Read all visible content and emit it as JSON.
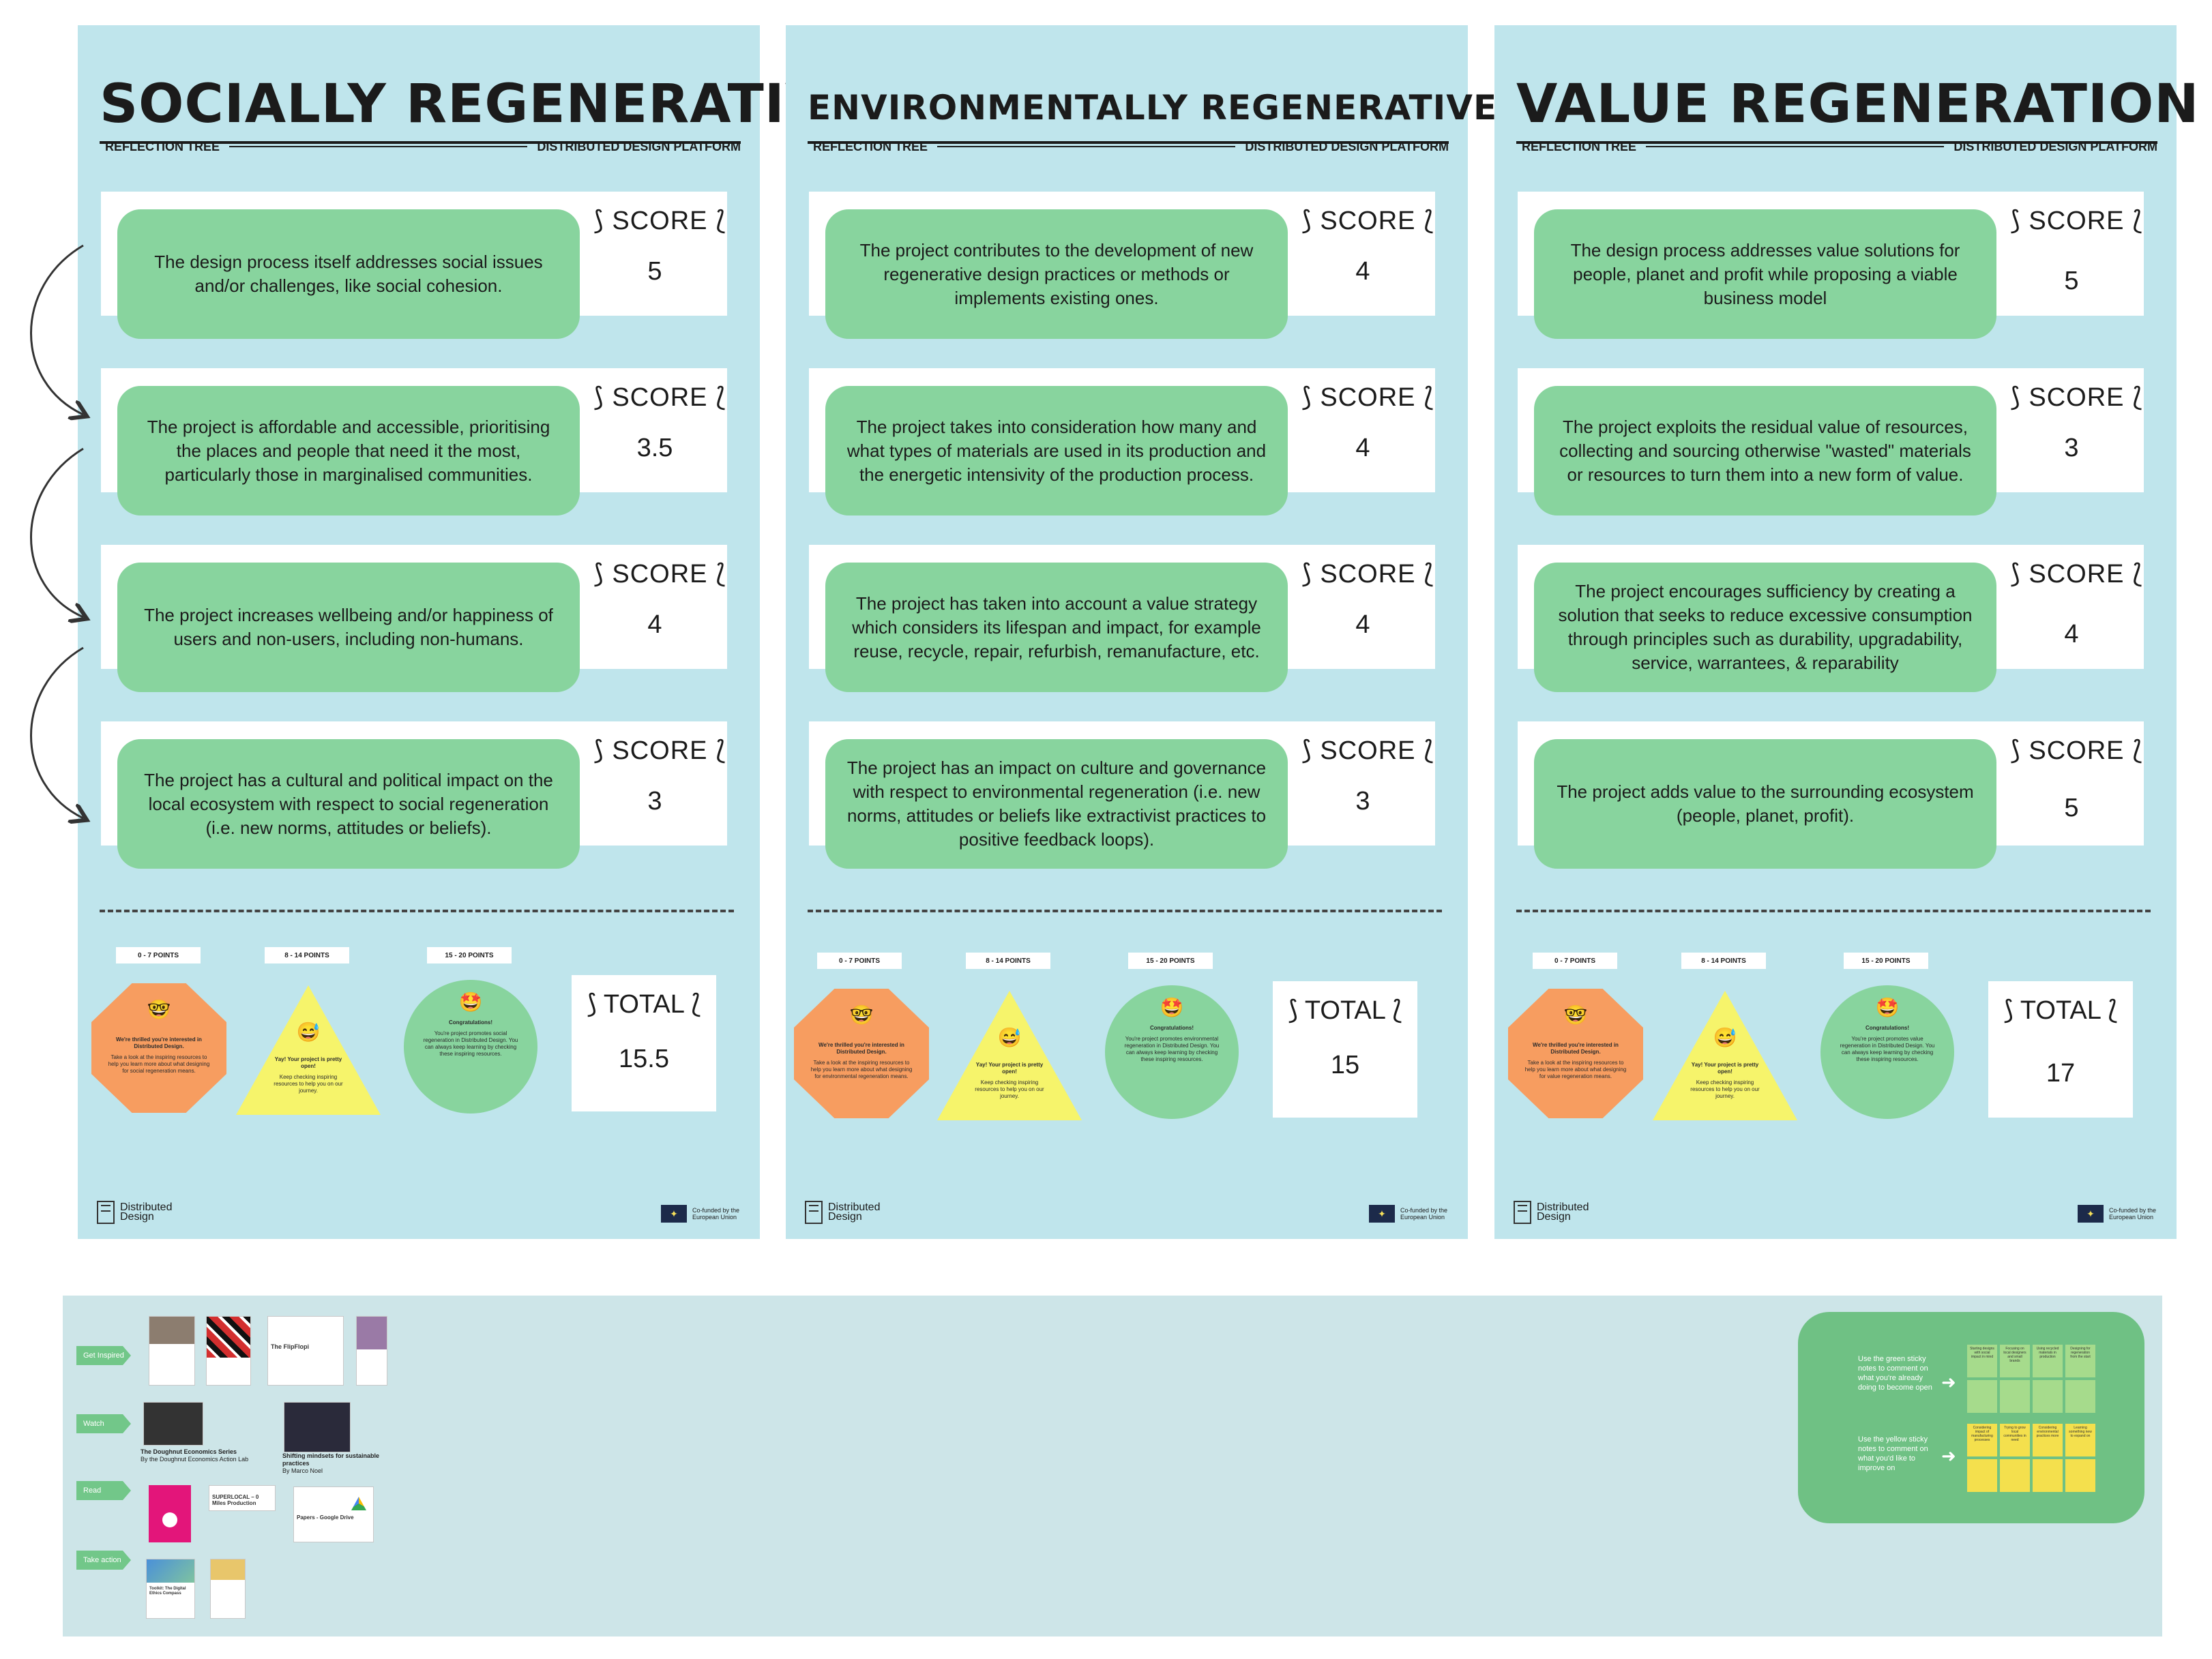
{
  "boards": [
    {
      "title": "SOCIALLY REGENERATIVE",
      "subtitle_left": "REFLECTION TREE",
      "subtitle_right": "DISTRIBUTED DESIGN PLATFORM",
      "score_label": "⟆ SCORE ⟅",
      "questions": [
        {
          "text": "The design process itself addresses social issues and/or challenges, like social cohesion.",
          "score": "5"
        },
        {
          "text": "The project is affordable and accessible, prioritising the places and people that need it the most, particularly those in marginalised communities.",
          "score": "3.5"
        },
        {
          "text": "The project increases wellbeing and/or happiness of users and non-users, including non-humans.",
          "score": "4"
        },
        {
          "text": "The project has a cultural and political impact on the local ecosystem with respect to social regeneration (i.e. new norms, attitudes or beliefs).",
          "score": "3"
        }
      ],
      "tiers": [
        {
          "range": "0 - 7 POINTS",
          "emoji": "🤓",
          "headline": "We're thrilled you're interested in Distributed Design.",
          "body": "Take a look at the inspiring resources to help you learn more about what designing for social regeneration means."
        },
        {
          "range": "8 - 14 POINTS",
          "emoji": "😅",
          "headline": "Yay! Your project is pretty open!",
          "body": "Keep checking inspiring resources to help you on our journey."
        },
        {
          "range": "15 - 20 POINTS",
          "emoji": "🤩",
          "headline": "Congratulations!",
          "body": "You're project promotes social regeneration in Distributed Design. You can always keep learning by checking these inspiring resources."
        }
      ],
      "total_label": "⟆ TOTAL ⟅",
      "total": "15.5",
      "logo_text_1": "Distributed",
      "logo_text_2": "Design",
      "eu_text_1": "Co-funded by the",
      "eu_text_2": "European Union"
    },
    {
      "title": "ENVIRONMENTALLY REGENERATIVE",
      "subtitle_left": "REFLECTION TREE",
      "subtitle_right": "DISTRIBUTED DESIGN PLATFORM",
      "score_label": "⟆ SCORE ⟅",
      "questions": [
        {
          "text": "The project contributes to the development of new regenerative design practices or methods or implements existing ones.",
          "score": "4"
        },
        {
          "text": "The project takes into consideration how many and what types of materials are used in its production and the energetic intensivity of the production process.",
          "score": "4"
        },
        {
          "text": "The project has taken into account a value strategy which considers its lifespan and impact, for example reuse, recycle, repair, refurbish, remanufacture, etc.",
          "score": "4"
        },
        {
          "text": "The project has an impact on culture and governance with respect to environmental regeneration (i.e. new norms, attitudes or beliefs like extractivist practices to positive feedback loops).",
          "score": "3"
        }
      ],
      "tiers": [
        {
          "range": "0 - 7 POINTS",
          "emoji": "🤓",
          "headline": "We're thrilled you're interested in Distributed Design.",
          "body": "Take a look at the inspiring resources to help you learn more about what designing for environmental regeneration means."
        },
        {
          "range": "8 - 14 POINTS",
          "emoji": "😅",
          "headline": "Yay! Your project is pretty open!",
          "body": "Keep checking inspiring resources to help you on our journey."
        },
        {
          "range": "15 - 20 POINTS",
          "emoji": "🤩",
          "headline": "Congratulations!",
          "body": "You're project promotes environmental regeneration in Distributed Design. You can always keep learning by checking these inspiring resources."
        }
      ],
      "total_label": "⟆ TOTAL ⟅",
      "total": "15",
      "logo_text_1": "Distributed",
      "logo_text_2": "Design",
      "eu_text_1": "Co-funded by the",
      "eu_text_2": "European Union"
    },
    {
      "title": "VALUE REGENERATION",
      "subtitle_left": "REFLECTION TREE",
      "subtitle_right": "DISTRIBUTED DESIGN PLATFORM",
      "score_label": "⟆ SCORE ⟅",
      "questions": [
        {
          "text": "The design process addresses value solutions for people, planet and profit while proposing a viable business model",
          "score": "5"
        },
        {
          "text": "The project exploits the residual value of resources, collecting and sourcing otherwise \"wasted\" materials or resources to turn them into a new form of value.",
          "score": "3"
        },
        {
          "text": "The project encourages sufficiency by creating a solution that seeks to reduce excessive consumption through principles such as durability, upgradability, service, warrantees, & reparability",
          "score": "4"
        },
        {
          "text": "The project adds value to the surrounding ecosystem (people, planet, profit).",
          "score": "5"
        }
      ],
      "tiers": [
        {
          "range": "0 - 7 POINTS",
          "emoji": "🤓",
          "headline": "We're thrilled you're interested in Distributed Design.",
          "body": "Take a look at the inspiring resources to help you learn more about what designing for value regeneration means."
        },
        {
          "range": "8 - 14 POINTS",
          "emoji": "😅",
          "headline": "Yay! Your project is pretty open!",
          "body": "Keep checking inspiring resources to help you on our journey."
        },
        {
          "range": "15 - 20 POINTS",
          "emoji": "🤩",
          "headline": "Congratulations!",
          "body": "You're project promotes value regeneration in Distributed Design. You can always keep learning by checking these inspiring resources."
        }
      ],
      "total_label": "⟆ TOTAL ⟅",
      "total": "17",
      "logo_text_1": "Distributed",
      "logo_text_2": "Design",
      "eu_text_1": "Co-funded by the",
      "eu_text_2": "European Union"
    }
  ],
  "resources": {
    "tags": [
      "Get Inspired",
      "Watch",
      "Read",
      "Take action"
    ],
    "watch_items": [
      {
        "title": "The Doughnut Economics Series",
        "sub": "By the Doughnut Economics Action Lab"
      },
      {
        "title": "Shifting mindsets for sustainable practices",
        "sub": "By Marco Noel"
      }
    ],
    "read_items": [
      {
        "title": "SUPERLOCAL – 0 Miles Production"
      },
      {
        "title": "Papers - Google Drive"
      }
    ],
    "inspired_items": [
      {
        "title": "The FlipFlopi"
      }
    ],
    "action_items": [
      {
        "title": "Toolkit: The Digital Ethics Compass"
      }
    ],
    "sticky": {
      "green_note": "Use the green sticky notes to comment on what you're already doing to become open",
      "yellow_note": "Use the yellow sticky notes to comment on what you'd like to improve on",
      "green_row_1": [
        "Starting designs with social impact in mind",
        "Focusing on local designers and small brands",
        "Using recycled materials in production",
        "Designing for regeneration from the start"
      ],
      "yellow_row_1": [
        "Considering impact of manufacturing processes",
        "Trying to grow local communities in need",
        "Considering environmental practices more",
        "Learning something new to expand on"
      ]
    }
  },
  "colors": {
    "board_bg": "#bfe5ec",
    "pill_green": "#88d49e",
    "octagon_orange": "#f79d60",
    "triangle_yellow": "#f6f46b",
    "resources_bg": "#cde5e8",
    "sticky_panel": "#6fc184"
  }
}
